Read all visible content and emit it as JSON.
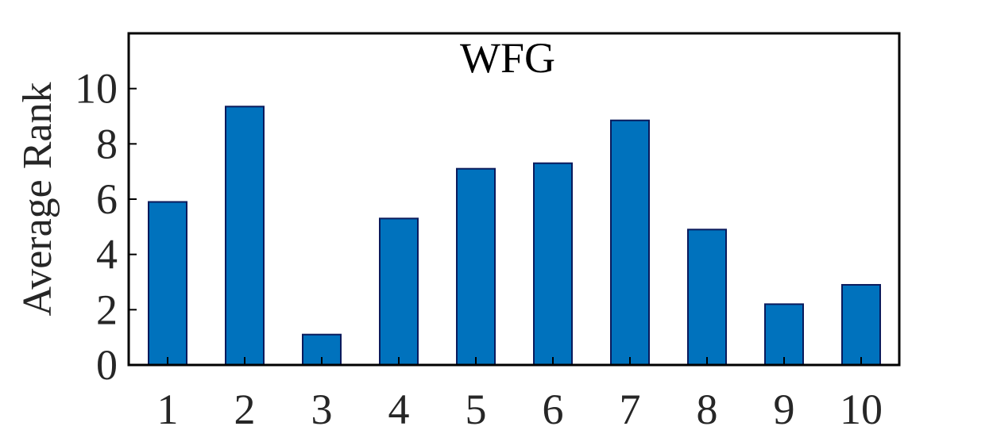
{
  "chart_data": {
    "type": "bar",
    "title": "WFG",
    "xlabel": "",
    "ylabel": "Average Rank",
    "categories": [
      "1",
      "2",
      "3",
      "4",
      "5",
      "6",
      "7",
      "8",
      "9",
      "10"
    ],
    "values": [
      5.9,
      9.35,
      1.1,
      5.3,
      7.1,
      7.3,
      8.85,
      4.9,
      2.2,
      2.9
    ],
    "ylim": [
      0,
      12
    ],
    "yticks": [
      "0",
      "2",
      "4",
      "6",
      "8",
      "10"
    ],
    "grid": false,
    "legend": "none",
    "colors": {
      "bar_fill": "#0072BD",
      "bar_edge": "#0A1A5C",
      "axis": "#000000",
      "text": "#262626"
    }
  }
}
